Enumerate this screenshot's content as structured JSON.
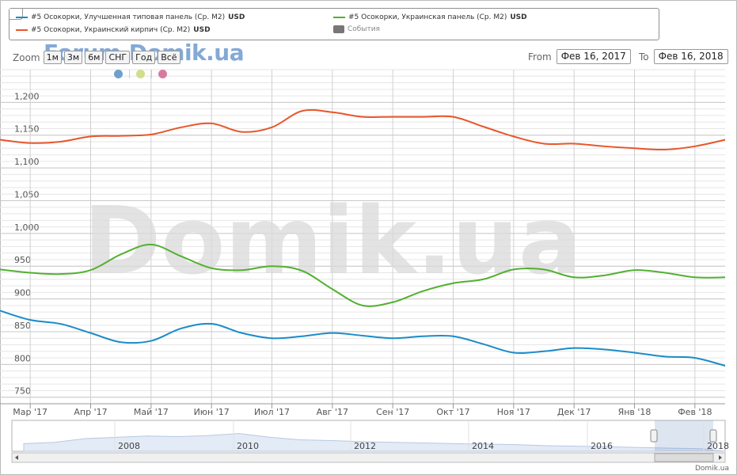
{
  "legend": {
    "items": [
      {
        "label": "#5 Осокорки, Улучшенная типовая панель (Ср. М2)",
        "unit": "USD",
        "color": "#1a8cc8"
      },
      {
        "label": "#5 Осокорки, Украинский кирпич (Ср. М2)",
        "unit": "USD",
        "color": "#e8562a"
      },
      {
        "label": "#5 Осокорки, Украинская панель (Ср. М2)",
        "unit": "USD",
        "color": "#52b030"
      },
      {
        "label": "События",
        "unit": "",
        "color": "#777777"
      }
    ]
  },
  "toolbar": {
    "zoom_label": "Zoom",
    "buttons": [
      "1м",
      "3м",
      "6м",
      "СНГ",
      "Год",
      "Всё"
    ],
    "from_label": "From",
    "from_value": "Фев 16, 2017",
    "to_label": "To",
    "to_value": "Фев 16, 2018",
    "event_dot_colors": [
      "#6e9fd0",
      "#cfdf8a",
      "#d87aa0"
    ]
  },
  "watermark": {
    "top": "Forum.Domik.ua",
    "center": "Domik.ua"
  },
  "credit": "Domik.ua",
  "chart_data": {
    "type": "line",
    "x": [
      "Фев 16 '17",
      "Мар 1 '17",
      "Мар 15 '17",
      "Апр 1 '17",
      "Апр 15 '17",
      "Май 1 '17",
      "Май 15 '17",
      "Июн 1 '17",
      "Июн 15 '17",
      "Июл 1 '17",
      "Июл 15 '17",
      "Авг 1 '17",
      "Авг 15 '17",
      "Сен 1 '17",
      "Сен 15 '17",
      "Окт 1 '17",
      "Окт 15 '17",
      "Ноя 1 '17",
      "Ноя 15 '17",
      "Дек 1 '17",
      "Дек 15 '17",
      "Янв 1 '18",
      "Янв 15 '18",
      "Фев 1 '18",
      "Фев 16 '18"
    ],
    "series": [
      {
        "name": "#5 Осокорки, Улучшенная типовая панель (Ср. М2)",
        "color": "#1a8cc8",
        "values": [
          882,
          868,
          862,
          848,
          834,
          836,
          855,
          862,
          848,
          840,
          843,
          848,
          844,
          840,
          843,
          843,
          831,
          818,
          820,
          825,
          823,
          818,
          812,
          810,
          798
        ]
      },
      {
        "name": "#5 Осокорки, Украинский кирпич (Ср. М2)",
        "color": "#e8562a",
        "values": [
          1143,
          1138,
          1140,
          1148,
          1149,
          1151,
          1162,
          1168,
          1155,
          1162,
          1187,
          1185,
          1178,
          1178,
          1178,
          1178,
          1163,
          1148,
          1137,
          1137,
          1133,
          1130,
          1128,
          1133,
          1143
        ]
      },
      {
        "name": "#5 Осокорки, Украинская панель (Ср. М2)",
        "color": "#52b030",
        "values": [
          945,
          940,
          938,
          944,
          968,
          983,
          965,
          947,
          944,
          950,
          943,
          915,
          890,
          895,
          912,
          924,
          930,
          945,
          945,
          933,
          936,
          944,
          940,
          933,
          933
        ]
      }
    ],
    "x_ticks": [
      "Мар '17",
      "Апр '17",
      "Май '17",
      "Июн '17",
      "Июл '17",
      "Авг '17",
      "Сен '17",
      "Окт '17",
      "Ноя '17",
      "Дек '17",
      "Янв '18",
      "Фев '18"
    ],
    "y_ticks": [
      "750",
      "800",
      "850",
      "900",
      "950",
      "1,000",
      "1,050",
      "1,100",
      "1,150",
      "1,200"
    ],
    "ylim": [
      740,
      1250
    ],
    "grid": true,
    "legend_position": "top",
    "navigator": {
      "labels": [
        "2008",
        "2010",
        "2012",
        "2014",
        "2016",
        "2018"
      ]
    }
  }
}
